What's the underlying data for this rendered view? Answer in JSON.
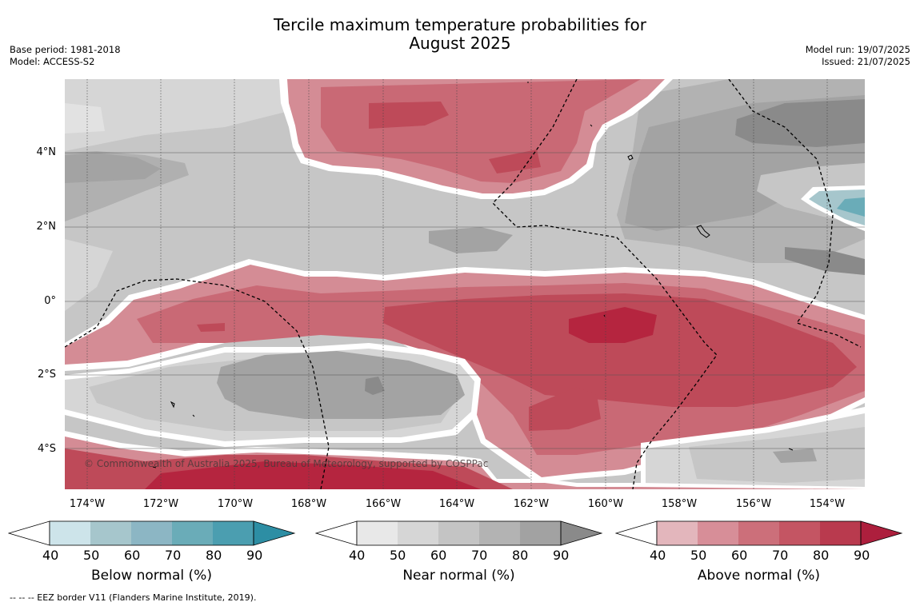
{
  "title_line1": "Tercile maximum temperature probabilities for",
  "title_line2": "August 2025",
  "meta": {
    "base_period": "Base period: 1981-2018",
    "model": "Model: ACCESS-S2",
    "model_run": "Model run: 19/07/2025",
    "issued": "Issued: 21/07/2025"
  },
  "axes": {
    "lon_ticks": [
      "174°W",
      "172°W",
      "170°W",
      "168°W",
      "166°W",
      "164°W",
      "162°W",
      "160°W",
      "158°W",
      "156°W",
      "154°W"
    ],
    "lat_ticks": [
      "4°N",
      "2°N",
      "0°",
      "2°S",
      "4°S"
    ]
  },
  "colorbars": [
    {
      "title": "Below normal (%)",
      "ticks": [
        "40",
        "50",
        "60",
        "70",
        "80",
        "90"
      ],
      "colors": [
        "#cde4ea",
        "#a6c6cc",
        "#8cb6c4",
        "#6aacb8",
        "#4b9eb0",
        "#2d8ea4"
      ]
    },
    {
      "title": "Near normal (%)",
      "ticks": [
        "40",
        "50",
        "60",
        "70",
        "80",
        "90"
      ],
      "colors": [
        "#e8e8e8",
        "#d6d6d6",
        "#c4c4c4",
        "#b3b3b3",
        "#a2a2a2",
        "#8a8a8a"
      ]
    },
    {
      "title": "Above normal (%)",
      "ticks": [
        "40",
        "50",
        "60",
        "70",
        "80",
        "90"
      ],
      "colors": [
        "#e3b6bc",
        "#d78e98",
        "#cc6f7a",
        "#c45563",
        "#b93a4e",
        "#ad1f3d"
      ]
    }
  ],
  "copyright": "© Commonwealth of Australia 2025, Bureau of Meteorology, supported by COSPPac",
  "footnote": "-- -- -- EEZ border V11 (Flanders Marine Institute, 2019).",
  "colors": {
    "near_40": "#d6d6d6",
    "near_50": "#c6c6c6",
    "near_60": "#b4b4b4",
    "near_70": "#a3a3a3",
    "near_80": "#8a8a8a",
    "above_40": "#e1aeb5",
    "above_50": "#d48c95",
    "above_60": "#c96975",
    "above_70": "#be4a59",
    "above_80": "#b5253f",
    "below_50": "#a6c6cc",
    "below_70": "#6aacb8"
  }
}
